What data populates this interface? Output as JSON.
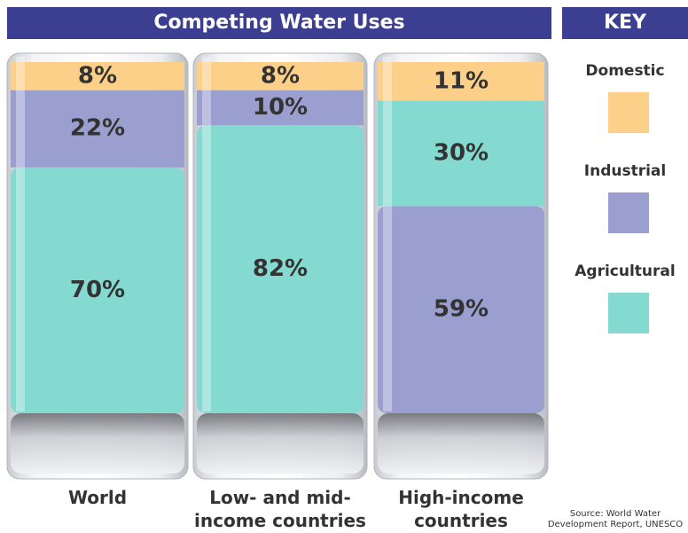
{
  "title": "Competing Water Uses",
  "key_title": "KEY",
  "source": "Source: World Water Development Report, UNESCO",
  "chart_data": {
    "type": "stacked-bar",
    "categories": [
      "World",
      "Low- and mid-income countries",
      "High-income countries"
    ],
    "series": [
      {
        "name": "Domestic",
        "color": "#fcd088",
        "values": [
          8,
          8,
          11
        ],
        "value_labels": [
          "8%",
          "8%",
          "11%"
        ]
      },
      {
        "name": "Industrial",
        "color": "#9a9fcf",
        "values": [
          22,
          10,
          59
        ],
        "value_labels": [
          "22%",
          "10%",
          "59%"
        ]
      },
      {
        "name": "Agricultural",
        "color": "#84d9d0",
        "values": [
          70,
          82,
          30
        ],
        "value_labels": [
          "70%",
          "82%",
          "30%"
        ]
      }
    ]
  }
}
